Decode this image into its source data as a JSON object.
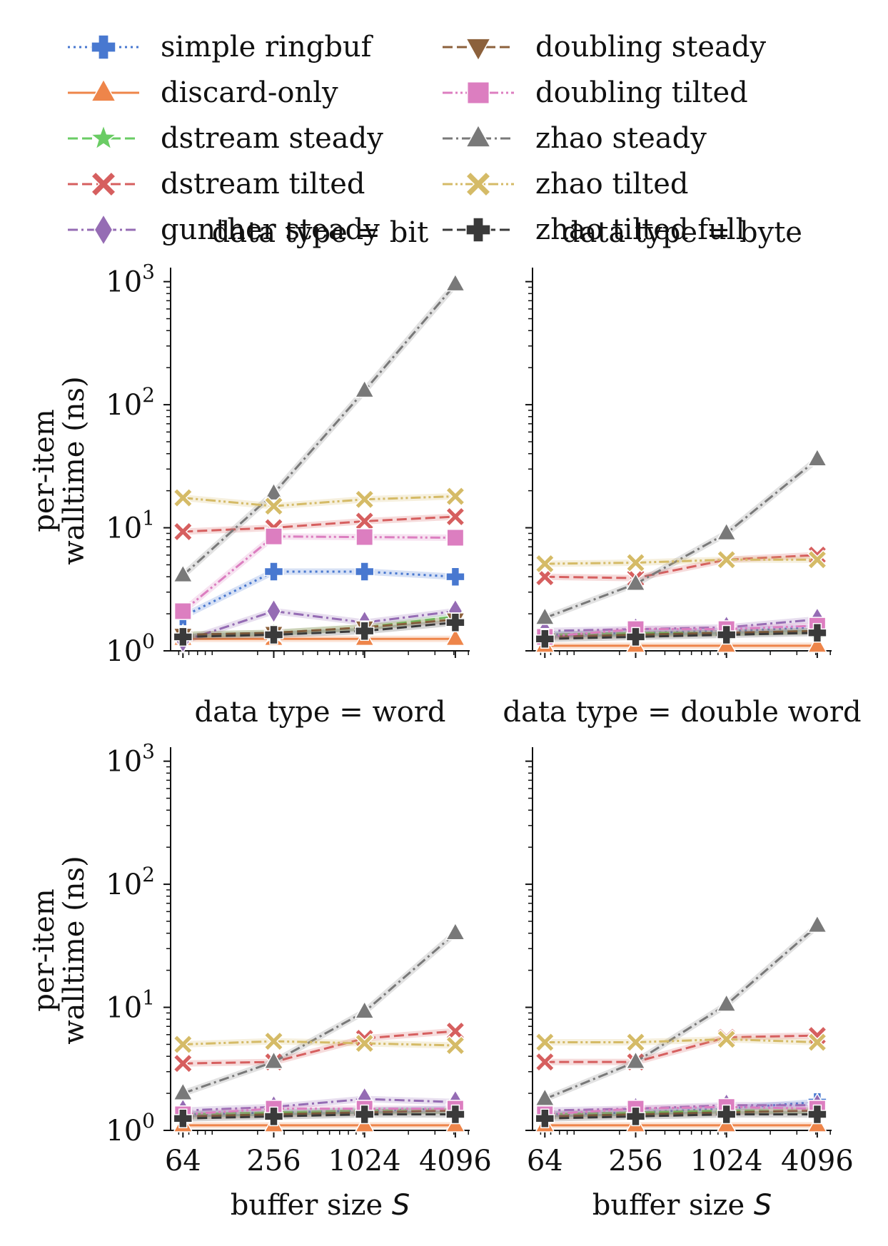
{
  "legend": {
    "entries": [
      {
        "label": "simple ringbuf",
        "color": "#4878d0",
        "marker": "plus",
        "dash": "dotted"
      },
      {
        "label": "discard-only",
        "color": "#ee854a",
        "marker": "triangle-up",
        "dash": "solid"
      },
      {
        "label": "dstream steady",
        "color": "#6acc64",
        "marker": "star",
        "dash": "dashed"
      },
      {
        "label": "dstream tilted",
        "color": "#d65f5f",
        "marker": "x",
        "dash": "dashed"
      },
      {
        "label": "gunther steady",
        "color": "#956cb4",
        "marker": "diamond",
        "dash": "dashdot"
      },
      {
        "label": "doubling steady",
        "color": "#8c613c",
        "marker": "triangle-down",
        "dash": "dashed"
      },
      {
        "label": "doubling tilted",
        "color": "#dc7ec0",
        "marker": "square",
        "dash": "dashdotdot"
      },
      {
        "label": "zhao steady",
        "color": "#797979",
        "marker": "triangle-up",
        "dash": "dashdot"
      },
      {
        "label": "zhao tilted",
        "color": "#d5bb67",
        "marker": "x",
        "dash": "dashdotdot"
      },
      {
        "label": "zhao tilted full",
        "color": "#3a3a3a",
        "marker": "plus",
        "dash": "dashed"
      }
    ]
  },
  "chart_data": [
    {
      "type": "line",
      "title": "data type = bit",
      "xlabel": "",
      "ylabel": "per-item\nwalltime (ns)",
      "xscale": "log2",
      "yscale": "log10",
      "xlim": [
        53,
        5100
      ],
      "ylim": [
        1,
        1300
      ],
      "x": [
        64,
        256,
        1024,
        4096
      ],
      "xticklabels": [],
      "yticklabels": [
        "10^0",
        "10^1",
        "10^2",
        "10^3"
      ],
      "series": [
        {
          "name": "simple ringbuf",
          "values": [
            1.9,
            4.4,
            4.4,
            4.0
          ]
        },
        {
          "name": "discard-only",
          "values": [
            1.25,
            1.25,
            1.25,
            1.25
          ]
        },
        {
          "name": "dstream steady",
          "values": [
            1.35,
            1.4,
            1.55,
            1.9
          ]
        },
        {
          "name": "dstream tilted",
          "values": [
            9.3,
            10.0,
            11.3,
            12.3
          ]
        },
        {
          "name": "gunther steady",
          "values": [
            1.2,
            2.1,
            1.7,
            2.1
          ]
        },
        {
          "name": "doubling steady",
          "values": [
            1.35,
            1.4,
            1.55,
            1.8
          ]
        },
        {
          "name": "doubling tilted",
          "values": [
            2.1,
            8.5,
            8.4,
            8.3
          ]
        },
        {
          "name": "zhao steady",
          "values": [
            4.1,
            19.0,
            130.0,
            950.0
          ]
        },
        {
          "name": "zhao tilted",
          "values": [
            17.5,
            15.0,
            17.0,
            18.0
          ]
        },
        {
          "name": "zhao tilted full",
          "values": [
            1.3,
            1.35,
            1.45,
            1.7
          ]
        }
      ]
    },
    {
      "type": "line",
      "title": "data type = byte",
      "xlabel": "",
      "ylabel": "",
      "xscale": "log2",
      "yscale": "log10",
      "xlim": [
        53,
        5100
      ],
      "ylim": [
        1,
        1300
      ],
      "x": [
        64,
        256,
        1024,
        4096
      ],
      "xticklabels": [],
      "yticklabels": [],
      "series": [
        {
          "name": "simple ringbuf",
          "values": [
            1.35,
            1.4,
            1.45,
            1.55
          ]
        },
        {
          "name": "discard-only",
          "values": [
            1.1,
            1.1,
            1.1,
            1.1
          ]
        },
        {
          "name": "dstream steady",
          "values": [
            1.35,
            1.4,
            1.4,
            1.45
          ]
        },
        {
          "name": "dstream tilted",
          "values": [
            4.0,
            3.9,
            5.5,
            6.0
          ]
        },
        {
          "name": "gunther steady",
          "values": [
            1.45,
            1.5,
            1.55,
            1.8
          ]
        },
        {
          "name": "doubling steady",
          "values": [
            1.3,
            1.35,
            1.4,
            1.45
          ]
        },
        {
          "name": "doubling tilted",
          "values": [
            1.3,
            1.5,
            1.5,
            1.6
          ]
        },
        {
          "name": "zhao steady",
          "values": [
            1.85,
            3.5,
            9.0,
            36.0
          ]
        },
        {
          "name": "zhao tilted",
          "values": [
            5.1,
            5.2,
            5.5,
            5.5
          ]
        },
        {
          "name": "zhao tilted full",
          "values": [
            1.25,
            1.3,
            1.35,
            1.4
          ]
        }
      ]
    },
    {
      "type": "line",
      "title": "data type = word",
      "xlabel": "buffer size S",
      "ylabel": "per-item\nwalltime (ns)",
      "xscale": "log2",
      "yscale": "log10",
      "xlim": [
        53,
        5100
      ],
      "ylim": [
        1,
        1300
      ],
      "x": [
        64,
        256,
        1024,
        4096
      ],
      "xticklabels": [
        "64",
        "256",
        "1024",
        "4096"
      ],
      "yticklabels": [
        "10^0",
        "10^1",
        "10^2",
        "10^3"
      ],
      "series": [
        {
          "name": "simple ringbuf",
          "values": [
            1.35,
            1.4,
            1.45,
            1.5
          ]
        },
        {
          "name": "discard-only",
          "values": [
            1.1,
            1.1,
            1.1,
            1.1
          ]
        },
        {
          "name": "dstream steady",
          "values": [
            1.35,
            1.4,
            1.45,
            1.45
          ]
        },
        {
          "name": "dstream tilted",
          "values": [
            3.5,
            3.6,
            5.6,
            6.4
          ]
        },
        {
          "name": "gunther steady",
          "values": [
            1.45,
            1.55,
            1.8,
            1.7
          ]
        },
        {
          "name": "doubling steady",
          "values": [
            1.3,
            1.35,
            1.4,
            1.45
          ]
        },
        {
          "name": "doubling tilted",
          "values": [
            1.35,
            1.5,
            1.5,
            1.5
          ]
        },
        {
          "name": "zhao steady",
          "values": [
            2.0,
            3.6,
            9.2,
            40.0
          ]
        },
        {
          "name": "zhao tilted",
          "values": [
            5.0,
            5.3,
            5.1,
            4.9
          ]
        },
        {
          "name": "zhao tilted full",
          "values": [
            1.25,
            1.3,
            1.35,
            1.35
          ]
        }
      ]
    },
    {
      "type": "line",
      "title": "data type = double word",
      "xlabel": "buffer size S",
      "ylabel": "",
      "xscale": "log2",
      "yscale": "log10",
      "xlim": [
        53,
        5100
      ],
      "ylim": [
        1,
        1300
      ],
      "x": [
        64,
        256,
        1024,
        4096
      ],
      "xticklabels": [
        "64",
        "256",
        "1024",
        "4096"
      ],
      "yticklabels": [],
      "series": [
        {
          "name": "simple ringbuf",
          "values": [
            1.35,
            1.4,
            1.5,
            1.7
          ]
        },
        {
          "name": "discard-only",
          "values": [
            1.1,
            1.1,
            1.1,
            1.1
          ]
        },
        {
          "name": "dstream steady",
          "values": [
            1.35,
            1.4,
            1.45,
            1.45
          ]
        },
        {
          "name": "dstream tilted",
          "values": [
            3.6,
            3.6,
            5.7,
            5.9
          ]
        },
        {
          "name": "gunther steady",
          "values": [
            1.45,
            1.5,
            1.6,
            1.6
          ]
        },
        {
          "name": "doubling steady",
          "values": [
            1.3,
            1.35,
            1.4,
            1.45
          ]
        },
        {
          "name": "doubling tilted",
          "values": [
            1.35,
            1.5,
            1.55,
            1.5
          ]
        },
        {
          "name": "zhao steady",
          "values": [
            1.8,
            3.6,
            10.5,
            46.0
          ]
        },
        {
          "name": "zhao tilted",
          "values": [
            5.2,
            5.2,
            5.5,
            5.2
          ]
        },
        {
          "name": "zhao tilted full",
          "values": [
            1.25,
            1.3,
            1.35,
            1.35
          ]
        }
      ]
    }
  ]
}
